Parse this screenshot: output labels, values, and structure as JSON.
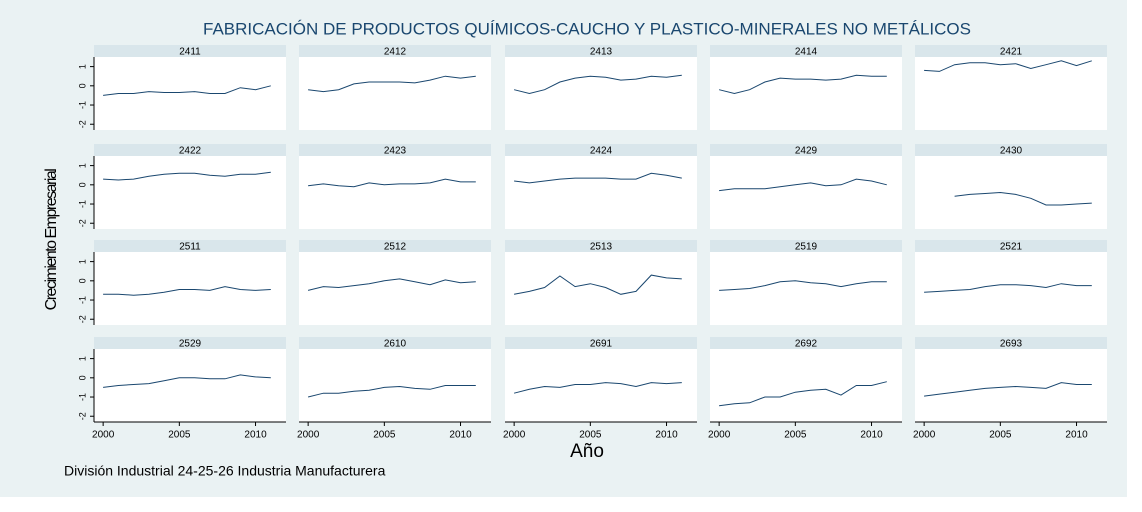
{
  "title": "FABRICACIÓN DE PRODUCTOS QUÍMICOS-CAUCHO Y PLASTICO-MINERALES NO METÁLICOS",
  "y_label": "Crecimiento Empresarial",
  "x_label": "Año",
  "note": "División Industrial 24-25-26 Industria Manufacturera",
  "axes": {
    "x": [
      2000,
      2001,
      2002,
      2003,
      2004,
      2005,
      2006,
      2007,
      2008,
      2009,
      2010,
      2011
    ],
    "xlim": [
      1999.4,
      2012
    ],
    "ylim": [
      -2.3,
      1.5
    ],
    "xticks": [
      2000,
      2005,
      2010
    ],
    "yticks": [
      1,
      0,
      -1,
      -2
    ]
  },
  "chart_data": [
    {
      "type": "line",
      "title": "2411",
      "color": "#1a476f",
      "values": [
        -0.5,
        -0.4,
        -0.4,
        -0.3,
        -0.35,
        -0.35,
        -0.3,
        -0.4,
        -0.4,
        -0.1,
        -0.2,
        0.0
      ]
    },
    {
      "type": "line",
      "title": "2412",
      "color": "#1a476f",
      "values": [
        -0.2,
        -0.3,
        -0.2,
        0.1,
        0.2,
        0.2,
        0.2,
        0.15,
        0.3,
        0.5,
        0.4,
        0.5
      ]
    },
    {
      "type": "line",
      "title": "2413",
      "color": "#1a476f",
      "values": [
        -0.2,
        -0.4,
        -0.2,
        0.2,
        0.4,
        0.5,
        0.45,
        0.3,
        0.35,
        0.5,
        0.45,
        0.55
      ]
    },
    {
      "type": "line",
      "title": "2414",
      "color": "#1a476f",
      "values": [
        -0.2,
        -0.4,
        -0.2,
        0.2,
        0.4,
        0.35,
        0.35,
        0.3,
        0.35,
        0.55,
        0.5,
        0.5
      ]
    },
    {
      "type": "line",
      "title": "2421",
      "color": "#1a476f",
      "values": [
        0.8,
        0.75,
        1.1,
        1.2,
        1.2,
        1.1,
        1.15,
        0.9,
        1.1,
        1.3,
        1.05,
        1.3
      ]
    },
    {
      "type": "line",
      "title": "2422",
      "color": "#1a476f",
      "values": [
        0.3,
        0.25,
        0.3,
        0.45,
        0.55,
        0.6,
        0.6,
        0.5,
        0.45,
        0.55,
        0.55,
        0.65
      ]
    },
    {
      "type": "line",
      "title": "2423",
      "color": "#1a476f",
      "values": [
        -0.05,
        0.05,
        -0.05,
        -0.1,
        0.1,
        0.0,
        0.05,
        0.05,
        0.1,
        0.3,
        0.15,
        0.15
      ]
    },
    {
      "type": "line",
      "title": "2424",
      "color": "#1a476f",
      "values": [
        0.2,
        0.1,
        0.2,
        0.3,
        0.35,
        0.35,
        0.35,
        0.3,
        0.3,
        0.6,
        0.5,
        0.35
      ]
    },
    {
      "type": "line",
      "title": "2429",
      "color": "#1a476f",
      "values": [
        -0.3,
        -0.2,
        -0.2,
        -0.2,
        -0.1,
        0.0,
        0.1,
        -0.05,
        0.0,
        0.3,
        0.2,
        0.0
      ]
    },
    {
      "type": "line",
      "title": "2430",
      "color": "#1a476f",
      "values": [
        null,
        null,
        -0.6,
        -0.5,
        -0.45,
        -0.4,
        -0.5,
        -0.7,
        -1.05,
        -1.05,
        -1.0,
        -0.95
      ]
    },
    {
      "type": "line",
      "title": "2511",
      "color": "#1a476f",
      "values": [
        -0.7,
        -0.7,
        -0.75,
        -0.7,
        -0.6,
        -0.45,
        -0.45,
        -0.5,
        -0.3,
        -0.45,
        -0.5,
        -0.45
      ]
    },
    {
      "type": "line",
      "title": "2512",
      "color": "#1a476f",
      "values": [
        -0.5,
        -0.3,
        -0.35,
        -0.25,
        -0.15,
        0.0,
        0.1,
        -0.05,
        -0.2,
        0.05,
        -0.1,
        -0.05
      ]
    },
    {
      "type": "line",
      "title": "2513",
      "color": "#1a476f",
      "values": [
        -0.7,
        -0.55,
        -0.35,
        0.25,
        -0.3,
        -0.15,
        -0.35,
        -0.7,
        -0.55,
        0.3,
        0.15,
        0.1
      ]
    },
    {
      "type": "line",
      "title": "2519",
      "color": "#1a476f",
      "values": [
        -0.5,
        -0.45,
        -0.4,
        -0.25,
        -0.05,
        0.0,
        -0.1,
        -0.15,
        -0.3,
        -0.15,
        -0.05,
        -0.05
      ]
    },
    {
      "type": "line",
      "title": "2521",
      "color": "#1a476f",
      "values": [
        -0.6,
        -0.55,
        -0.5,
        -0.45,
        -0.3,
        -0.2,
        -0.2,
        -0.25,
        -0.35,
        -0.15,
        -0.25,
        -0.25
      ]
    },
    {
      "type": "line",
      "title": "2529",
      "color": "#1a476f",
      "values": [
        -0.5,
        -0.4,
        -0.35,
        -0.3,
        -0.15,
        0.0,
        0.0,
        -0.05,
        -0.05,
        0.15,
        0.05,
        0.0
      ]
    },
    {
      "type": "line",
      "title": "2610",
      "color": "#1a476f",
      "values": [
        -1.0,
        -0.8,
        -0.8,
        -0.7,
        -0.65,
        -0.5,
        -0.45,
        -0.55,
        -0.6,
        -0.4,
        -0.4,
        -0.4
      ]
    },
    {
      "type": "line",
      "title": "2691",
      "color": "#1a476f",
      "values": [
        -0.8,
        -0.6,
        -0.45,
        -0.5,
        -0.35,
        -0.35,
        -0.25,
        -0.3,
        -0.45,
        -0.25,
        -0.3,
        -0.25
      ]
    },
    {
      "type": "line",
      "title": "2692",
      "color": "#1a476f",
      "values": [
        -1.45,
        -1.35,
        -1.3,
        -1.0,
        -1.0,
        -0.75,
        -0.65,
        -0.6,
        -0.9,
        -0.4,
        -0.4,
        -0.2
      ]
    },
    {
      "type": "line",
      "title": "2693",
      "color": "#1a476f",
      "values": [
        -0.95,
        -0.85,
        -0.75,
        -0.65,
        -0.55,
        -0.5,
        -0.45,
        -0.5,
        -0.55,
        -0.25,
        -0.35,
        -0.35
      ]
    }
  ]
}
